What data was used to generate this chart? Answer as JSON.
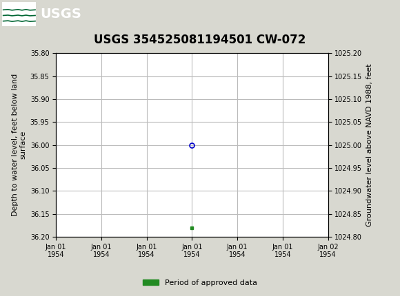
{
  "title": "USGS 354525081194501 CW-072",
  "ylabel_left": "Depth to water level, feet below land\nsurface",
  "ylabel_right": "Groundwater level above NAVD 1988, feet",
  "ylim_left": [
    35.8,
    36.2
  ],
  "ylim_right": [
    1024.8,
    1025.2
  ],
  "yticks_left": [
    35.8,
    35.85,
    35.9,
    35.95,
    36.0,
    36.05,
    36.1,
    36.15,
    36.2
  ],
  "yticks_right": [
    1024.8,
    1024.85,
    1024.9,
    1024.95,
    1025.0,
    1025.05,
    1025.1,
    1025.15,
    1025.2
  ],
  "header_bg_color": "#006633",
  "plot_bg_color": "#ffffff",
  "fig_bg_color": "#d8d8d0",
  "grid_color": "#bbbbbb",
  "data_point_x_num": 0,
  "data_point_y": 36.0,
  "data_point_color": "#0000cc",
  "bar_x_num": 0,
  "bar_y": 36.18,
  "bar_color": "#228B22",
  "legend_label": "Period of approved data",
  "title_fontsize": 12,
  "axis_label_fontsize": 8,
  "tick_fontsize": 7,
  "num_xticks": 7,
  "xlim_start_hours": -3,
  "xlim_end_hours": 3,
  "xtick_label": "Jan 01\n1954"
}
